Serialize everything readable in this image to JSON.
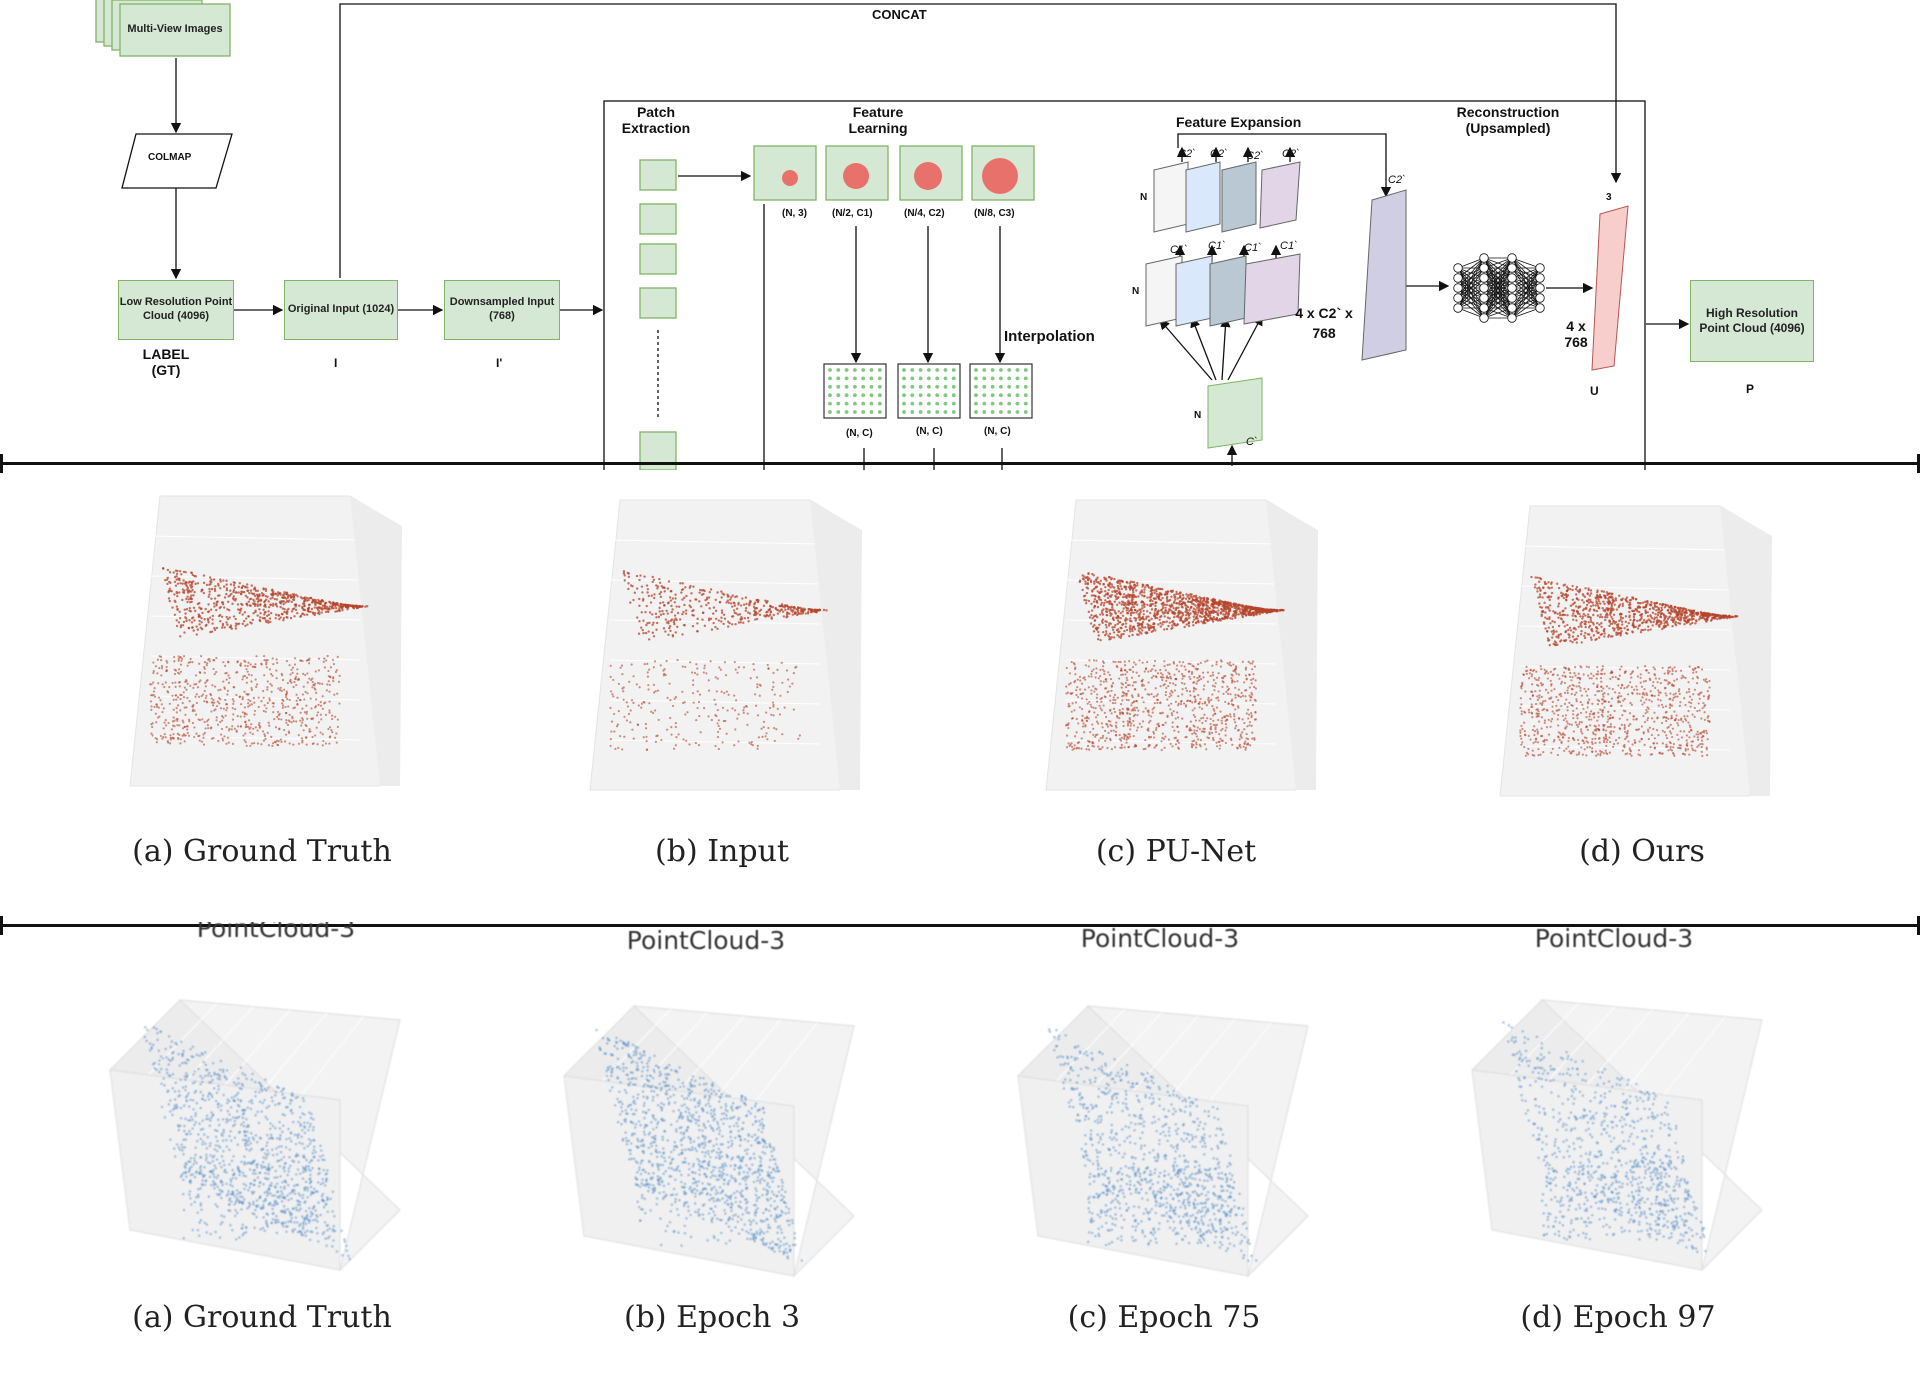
{
  "diagram": {
    "concat_label": "CONCAT",
    "multi_view_images": "Multi-View Images",
    "colmap": "COLMAP",
    "low_res": "Low Resolution Point Cloud (4096)",
    "label_gt": "LABEL (GT)",
    "original_input": "Original Input (1024)",
    "original_symbol": "I",
    "downsampled_input": "Downsampled Input (768)",
    "downsampled_symbol": "I'",
    "patch_extraction": "Patch Extraction",
    "feature_learning": "Feature Learning",
    "feature_shapes": [
      "(N, 3)",
      "(N/2, C1)",
      "(N/4, C2)",
      "(N/8, C3)"
    ],
    "interpolation": "Interpolation",
    "interp_shapes": [
      "(N, C)",
      "(N, C)",
      "(N, C)"
    ],
    "feature_expansion": "Feature Expansion",
    "n_label": "N",
    "c1_label": "C1`",
    "c2_label": "C2`",
    "c_label": "C`",
    "expansion_dims": "4 x C2` x 768",
    "reconstruction": "Reconstruction (Upsampled)",
    "recon_top": "3",
    "recon_dims": "4 x 768",
    "u_symbol": "U",
    "high_res": "High Resolution Point Cloud (4096)",
    "p_symbol": "P"
  },
  "row_middle": {
    "captions": [
      "(a) Ground Truth",
      "(b) Input",
      "(c) PU-Net",
      "(d) Ours"
    ],
    "point_color": "#b5442b"
  },
  "row_bottom": {
    "panel_titles": [
      "PointCloud-3",
      "PointCloud-3",
      "PointCloud-3",
      "PointCloud-3"
    ],
    "captions": [
      "(a) Ground Truth",
      "(b) Epoch 3",
      "(c) Epoch 75",
      "(d) Epoch 97"
    ],
    "point_color": "#3f7fbf"
  },
  "colors": {
    "green_fill": "#d5e8d4",
    "green_border": "#82b366",
    "expansion_colors": [
      "#f5f5f5",
      "#dae8fc",
      "#bac8d3",
      "#e1d5e7"
    ],
    "expanded_bar": "#d0cee2",
    "recon_bar": "#f8cecc"
  }
}
